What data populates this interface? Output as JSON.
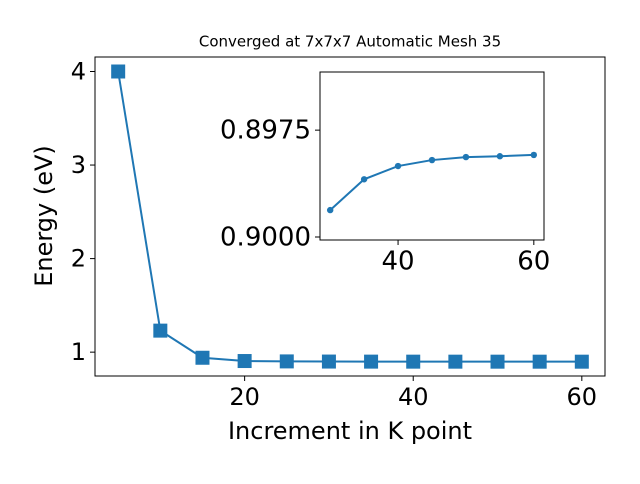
{
  "chart_data": [
    {
      "type": "line",
      "title": "Converged at 7x7x7 Automatic Mesh 35",
      "xlabel": "Increment in K point",
      "ylabel": "Energy (eV)",
      "x": [
        5,
        10,
        15,
        20,
        25,
        30,
        35,
        40,
        45,
        50,
        55,
        60
      ],
      "values": [
        4.0,
        1.23,
        0.94,
        0.905,
        0.901,
        0.89937,
        0.89865,
        0.89834,
        0.8982,
        0.89813,
        0.89811,
        0.89808
      ],
      "color": "#1f77b4",
      "marker": "square",
      "xlim": [
        2.25,
        62.75
      ],
      "ylim": [
        0.745,
        4.155
      ],
      "xticks": [
        20,
        40,
        60
      ],
      "yticks": [
        1,
        2,
        3,
        4
      ]
    },
    {
      "type": "line",
      "x": [
        30,
        35,
        40,
        45,
        50,
        55,
        60
      ],
      "values": [
        0.89937,
        0.89865,
        0.89834,
        0.8982,
        0.89813,
        0.89811,
        0.89808
      ],
      "color": "#1f77b4",
      "marker": "circle",
      "xlim": [
        28.5,
        61.5
      ],
      "ylim": [
        0.90007,
        0.89614
      ],
      "xticks": [
        40,
        60
      ],
      "yticks": [
        0.8975,
        {
          "value": 0.9,
          "label": "0.9000"
        }
      ]
    }
  ]
}
